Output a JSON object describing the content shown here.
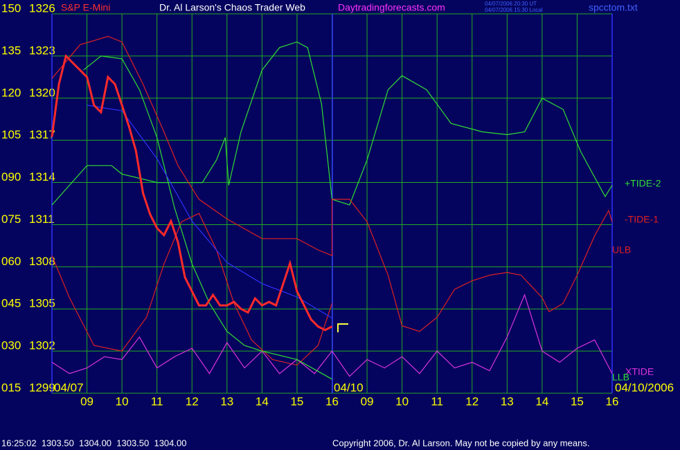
{
  "chart_data": {
    "type": "line",
    "title": "Dr. Al Larson's Chaos Trader Web",
    "instrument": "S&P E-Mini",
    "website": "Daytradingforecasts.com",
    "timestamps": [
      "04/07/2006 20:30 UT",
      "04/07/2006 15:30 Local"
    ],
    "filename": "spcctom.txt",
    "status": "16:25:02  1303.50  1304.00  1303.50  1304.00",
    "copyright": "Copyright 2006, Dr. Al Larson. May not be copied by any means.",
    "date_labels": [
      "04/07",
      "04/10",
      "04/10/2006"
    ],
    "grid": true,
    "xlim": [
      0,
      16
    ],
    "xticks": [
      {
        "value": 1,
        "label": "09"
      },
      {
        "value": 2,
        "label": "10"
      },
      {
        "value": 3,
        "label": "11"
      },
      {
        "value": 4,
        "label": "12"
      },
      {
        "value": 5,
        "label": "13"
      },
      {
        "value": 6,
        "label": "14"
      },
      {
        "value": 7,
        "label": "15"
      },
      {
        "value": 8,
        "label": "16"
      },
      {
        "value": 9,
        "label": "09"
      },
      {
        "value": 10,
        "label": "10"
      },
      {
        "value": 11,
        "label": "11"
      },
      {
        "value": 12,
        "label": "12"
      },
      {
        "value": 13,
        "label": "13"
      },
      {
        "value": 14,
        "label": "14"
      },
      {
        "value": 15,
        "label": "15"
      },
      {
        "value": 16,
        "label": "16"
      }
    ],
    "ylim": [
      15,
      150
    ],
    "yticks": [
      150,
      135,
      120,
      105,
      {
        "value": 90,
        "label": "090"
      },
      {
        "value": 75,
        "label": "075"
      },
      {
        "value": 60,
        "label": "060"
      },
      {
        "value": 45,
        "label": "045"
      },
      {
        "value": 30,
        "label": "030"
      },
      {
        "value": 15,
        "label": "015"
      }
    ],
    "y2lim": [
      1299,
      1326
    ],
    "y2ticks": [
      1326,
      1323,
      1320,
      1317,
      1314,
      1311,
      1308,
      1305,
      1302,
      1299
    ],
    "series": [
      {
        "name": "+TIDE-2",
        "color": "#33dd33",
        "x": [
          0,
          1,
          1.7,
          2,
          3,
          3.7,
          4.3,
          4.7,
          4.95,
          5.05,
          5.4,
          6,
          6.5,
          7,
          7.3,
          7.7,
          8,
          8.5,
          9,
          9.6,
          10,
          10.7,
          11.4,
          12.3,
          13,
          13.5,
          14,
          14.6,
          15.1,
          15.8,
          16
        ],
        "values": [
          82,
          96,
          96,
          93,
          90,
          90,
          90,
          98,
          106,
          89,
          108,
          130,
          138,
          140,
          138,
          118,
          84,
          82,
          98,
          123,
          128,
          123,
          111,
          108,
          107,
          108,
          120,
          116,
          101,
          85,
          89
        ]
      },
      {
        "name": "-TIDE-1",
        "color": "#e02020",
        "x": [
          0,
          0.8,
          1.6,
          2,
          2.6,
          3.2,
          3.6,
          4.2,
          5,
          6,
          7,
          7.6,
          8,
          8,
          8.5,
          9,
          9.6,
          10,
          10.5,
          11,
          11.5,
          12,
          12.5,
          13,
          13.4,
          14,
          14.2,
          14.6,
          15,
          15.5,
          15.9,
          16
        ],
        "values": [
          127,
          139,
          142,
          140,
          125,
          108,
          96,
          84,
          77,
          70,
          70,
          66,
          64,
          84,
          84,
          76,
          57,
          39,
          37,
          42,
          52,
          55,
          57,
          58,
          57,
          49,
          44,
          47,
          57,
          71,
          80,
          76
        ]
      },
      {
        "name": "ULB",
        "color": "#e02020",
        "x": [
          0,
          0.5,
          1.2,
          2,
          2.7,
          3.2,
          3.7,
          4.2,
          4.7,
          5.2,
          5.7,
          6.3,
          7,
          7.6,
          8
        ],
        "values": [
          64,
          49,
          32,
          30,
          42,
          61,
          76,
          79,
          66,
          47,
          34,
          27,
          25,
          32,
          47
        ]
      },
      {
        "name": "XTIDE",
        "color": "#dd33dd",
        "x": [
          0,
          0.5,
          1,
          1.5,
          2,
          2.5,
          3,
          3.5,
          4,
          4.5,
          5,
          5.5,
          6,
          6.5,
          7,
          7.5,
          8,
          8.5,
          9,
          9.5,
          10,
          10.5,
          11,
          11.5,
          12,
          12.5,
          13,
          13.5,
          14,
          14.5,
          15,
          15.5,
          16
        ],
        "values": [
          26,
          22,
          24,
          28,
          27,
          35,
          24,
          28,
          31,
          22,
          33,
          24,
          30,
          22,
          27,
          22,
          30,
          21,
          27,
          24,
          28,
          22,
          30,
          24,
          26,
          23,
          35,
          50,
          30,
          26,
          31,
          34,
          22
        ]
      },
      {
        "name": "LLB",
        "color": "#33dd33",
        "x": [
          0.9,
          1.4,
          2,
          2.5,
          3,
          3.5,
          4,
          4.5,
          5,
          5.5,
          6,
          7,
          8
        ],
        "values": [
          130,
          135,
          134,
          123,
          106,
          81,
          61,
          47,
          37,
          32,
          30,
          27,
          20
        ]
      },
      {
        "color": "#3030ff",
        "axis": "y2",
        "x": [
          1,
          2,
          3,
          4,
          5,
          6,
          7,
          8
        ],
        "values": [
          1319.5,
          1319.1,
          1315.7,
          1311.25,
          1308.3,
          1306.8,
          1305.85,
          1304.35
        ]
      },
      {
        "color": "#ff2a2a",
        "axis": "y2",
        "x": [
          0,
          0.2,
          0.4,
          0.6,
          0.8,
          1,
          1.2,
          1.4,
          1.6,
          1.8,
          2,
          2.2,
          2.4,
          2.6,
          2.8,
          3,
          3.2,
          3.4,
          3.6,
          3.8,
          4,
          4.2,
          4.4,
          4.6,
          4.8,
          5,
          5.2,
          5.4,
          5.6,
          5.8,
          6,
          6.2,
          6.4,
          6.6,
          6.8,
          7,
          7.2,
          7.4,
          7.6,
          7.8,
          8
        ],
        "values": [
          1317.25,
          1321,
          1323,
          1322.5,
          1322,
          1321.5,
          1319.5,
          1319,
          1321.5,
          1321,
          1319.5,
          1318,
          1316.25,
          1313.25,
          1311.75,
          1310.75,
          1310.25,
          1311.25,
          1309.75,
          1307.25,
          1306.25,
          1305.25,
          1305.25,
          1306,
          1305.25,
          1305.25,
          1305.5,
          1305,
          1304.75,
          1305.75,
          1305.25,
          1305.5,
          1305.25,
          1306.75,
          1308.25,
          1306.25,
          1305.25,
          1304.25,
          1303.75,
          1303.5,
          1303.75
        ]
      }
    ]
  }
}
